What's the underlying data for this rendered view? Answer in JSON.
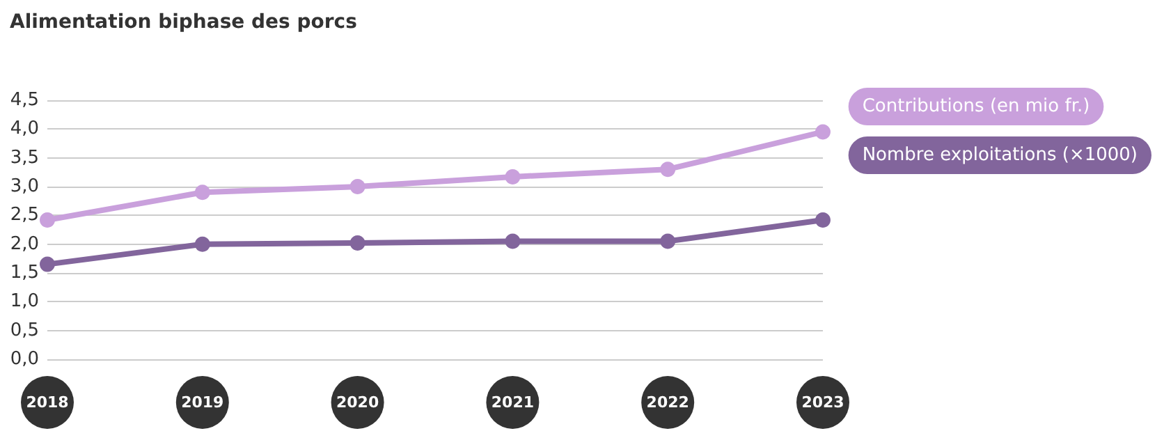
{
  "chart_data": {
    "type": "line",
    "title": "Alimentation biphase des porcs",
    "categories": [
      "2018",
      "2019",
      "2020",
      "2021",
      "2022",
      "2023"
    ],
    "series": [
      {
        "name": "Contributions (en mio fr.)",
        "color": "#c9a0dc",
        "values": [
          2.42,
          2.9,
          3.0,
          3.17,
          3.3,
          3.95
        ]
      },
      {
        "name": "Nombre exploitations (×1000)",
        "color": "#82659c",
        "values": [
          1.65,
          2.0,
          2.02,
          2.05,
          2.05,
          2.42
        ]
      }
    ],
    "ylim": [
      0,
      4.5
    ],
    "yticks": [
      {
        "value": 0,
        "label": "0,0"
      },
      {
        "value": 0.5,
        "label": "0,5"
      },
      {
        "value": 1,
        "label": "1,0"
      },
      {
        "value": 1.5,
        "label": "1,5"
      },
      {
        "value": 2,
        "label": "2,0"
      },
      {
        "value": 2.5,
        "label": "2,5"
      },
      {
        "value": 3,
        "label": "3,0"
      },
      {
        "value": 3.5,
        "label": "3,5"
      },
      {
        "value": 4,
        "label": "4,0"
      },
      {
        "value": 4.5,
        "label": "4,5"
      }
    ],
    "grid": "y",
    "legend": "right",
    "marker": "circle",
    "line_style": "solid"
  }
}
